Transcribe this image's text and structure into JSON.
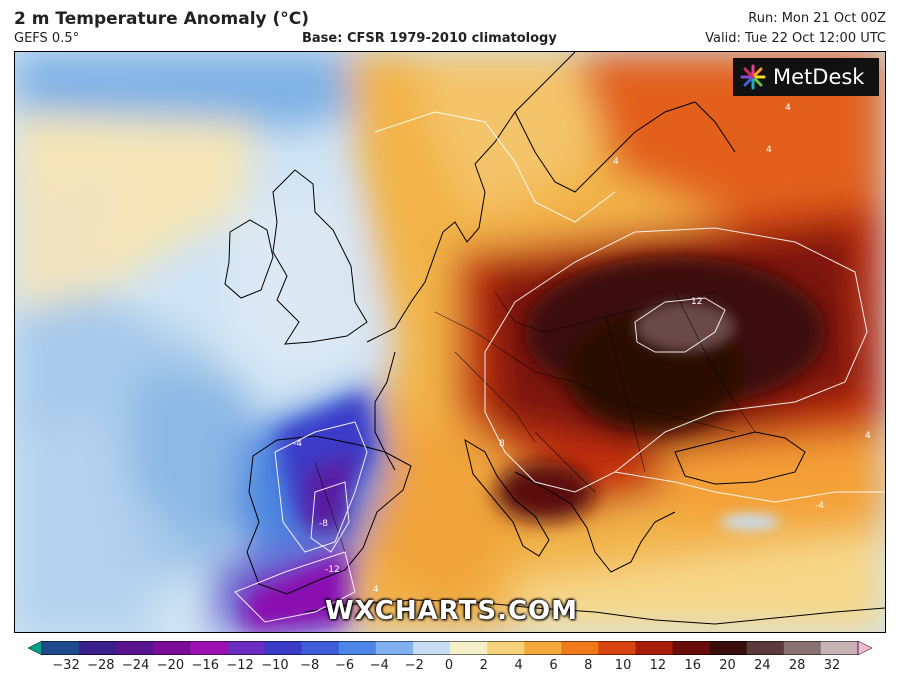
{
  "header": {
    "title": "2 m Temperature Anomaly (°C)",
    "model": "GEFS 0.5°",
    "base": "Base: CFSR 1979-2010 climatology",
    "run": "Run: Mon 21 Oct 00Z",
    "valid": "Valid: Tue 22 Oct 12:00 UTC"
  },
  "logo": {
    "text": "MetDesk",
    "icon": "metdesk-starburst-icon"
  },
  "watermark": "WXCHARTS.COM",
  "colorbar": {
    "ticks": [
      "−32",
      "−28",
      "−24",
      "−20",
      "−16",
      "−12",
      "−10",
      "−8",
      "−6",
      "−4",
      "−2",
      "0",
      "2",
      "4",
      "6",
      "8",
      "10",
      "12",
      "16",
      "20",
      "24",
      "28",
      "32"
    ],
    "colors": [
      "#00a08c",
      "#1f4a8a",
      "#3a1f8a",
      "#5a1490",
      "#7a0c9a",
      "#9a10b0",
      "#6a2cc0",
      "#3a3ac8",
      "#3c5cd8",
      "#4c86e6",
      "#7fb2ee",
      "#c8def4",
      "#f4f0c8",
      "#f6d27a",
      "#f4a83c",
      "#ee7a1c",
      "#d84410",
      "#a81c0c",
      "#6a0c08",
      "#3a0e0c",
      "#5a3a3a",
      "#8a7070",
      "#c8b4b4",
      "#f2b8d4"
    ]
  },
  "contour_labels": [
    "12",
    "8",
    "4",
    "4",
    "4",
    "4",
    "4",
    "-4",
    "-8",
    "-12",
    "-4"
  ],
  "colors": {
    "ocean_cold": "#bfd8ee",
    "warm": "#f2b24a",
    "hot": "#b8260e",
    "extreme": "#2e0a08"
  }
}
